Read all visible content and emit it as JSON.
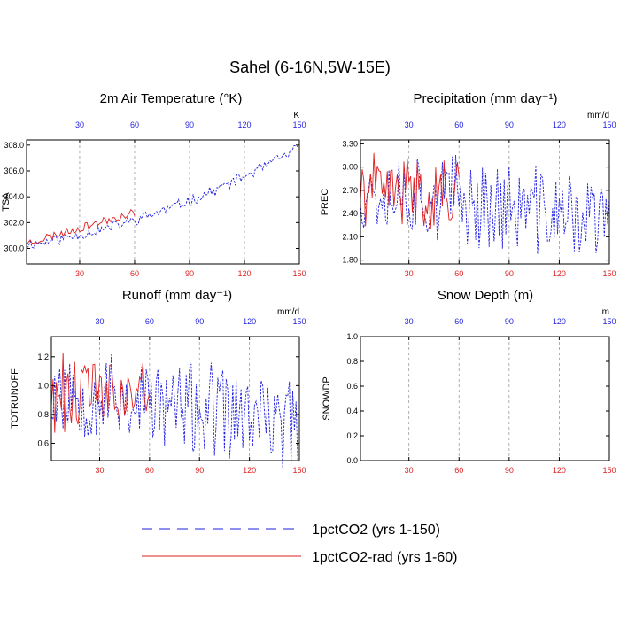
{
  "figure": {
    "title": "Sahel (6-16N,5W-15E)",
    "colors": {
      "series1": "#1f1fe0",
      "series2": "#e01f1f",
      "grid": "#9a9a9a"
    }
  },
  "legend": [
    {
      "label": "1pctCO2 (yrs 1-150)",
      "color": "#1f1fe0",
      "style": "dashed"
    },
    {
      "label": "1pctCO2-rad (yrs 1-60)",
      "color": "#e01f1f",
      "style": "solid"
    }
  ],
  "chart_data": [
    {
      "type": "line",
      "title": "2m Air Temperature (°K)",
      "ylabel": "TSA",
      "unit": "K",
      "xlim": [
        1,
        150
      ],
      "ylim": [
        298.8,
        308.4
      ],
      "yticks": [
        "300.0",
        "302.0",
        "304.0",
        "306.0",
        "308.0"
      ],
      "yticks_values": [
        300,
        302,
        304,
        306,
        308
      ],
      "xticks_bottom": [
        "30",
        "60",
        "90",
        "120",
        "150"
      ],
      "xticks_top": [
        "30",
        "60",
        "90",
        "120",
        "150"
      ],
      "grid_x": [
        30,
        60,
        90,
        120
      ],
      "series": [
        {
          "name": "1pctCO2 (yrs 1-150)",
          "gen": {
            "start": 300.3,
            "end": 307.8,
            "amp": 0.55,
            "seed": 11,
            "curve": 0.6
          },
          "values": []
        },
        {
          "name": "1pctCO2-rad (yrs 1-60)",
          "gen": {
            "start": 300.4,
            "end": 302.8,
            "amp": 0.45,
            "seed": 23,
            "curve": 0
          },
          "values": []
        }
      ]
    },
    {
      "type": "line",
      "title": "Precipitation (mm day⁻¹)",
      "ylabel": "PREC",
      "unit": "mm/d",
      "xlim": [
        1,
        150
      ],
      "ylim": [
        1.75,
        3.35
      ],
      "yticks": [
        "1.80",
        "2.10",
        "2.40",
        "2.70",
        "3.00",
        "3.30"
      ],
      "yticks_values": [
        1.8,
        2.1,
        2.4,
        2.7,
        3.0,
        3.3
      ],
      "xticks_bottom": [
        "30",
        "60",
        "90",
        "120",
        "150"
      ],
      "xticks_top": [
        "30",
        "60",
        "90",
        "120",
        "150"
      ],
      "grid_x": [
        30,
        60,
        90,
        120
      ],
      "series": [
        {
          "name": "1pctCO2 (yrs 1-150)",
          "gen": {
            "start": 2.75,
            "end": 2.3,
            "amp": 0.75,
            "seed": 37,
            "curve": 0
          },
          "values": []
        },
        {
          "name": "1pctCO2-rad (yrs 1-60)",
          "gen": {
            "start": 2.7,
            "end": 2.65,
            "amp": 0.6,
            "seed": 41,
            "curve": 0
          },
          "values": []
        }
      ]
    },
    {
      "type": "line",
      "title": "Runoff (mm day⁻¹)",
      "ylabel": "TOTRUNOFF",
      "unit": "mm/d",
      "xlim": [
        1,
        150
      ],
      "ylim": [
        0.48,
        1.34
      ],
      "yticks": [
        "0.6",
        "0.8",
        "1.0",
        "1.2"
      ],
      "yticks_values": [
        0.6,
        0.8,
        1.0,
        1.2
      ],
      "xticks_bottom": [
        "30",
        "60",
        "90",
        "120",
        "150"
      ],
      "xticks_top": [
        "30",
        "60",
        "90",
        "120",
        "150"
      ],
      "grid_x": [
        30,
        60,
        90,
        120
      ],
      "series": [
        {
          "name": "1pctCO2 (yrs 1-150)",
          "gen": {
            "start": 0.98,
            "end": 0.72,
            "amp": 0.42,
            "seed": 53,
            "curve": 0
          },
          "values": []
        },
        {
          "name": "1pctCO2-rad (yrs 1-60)",
          "gen": {
            "start": 0.95,
            "end": 0.92,
            "amp": 0.38,
            "seed": 61,
            "curve": 0
          },
          "values": []
        }
      ]
    },
    {
      "type": "line",
      "title": "Snow Depth (m)",
      "ylabel": "SNOWDP",
      "unit": "m",
      "xlim": [
        1,
        150
      ],
      "ylim": [
        0,
        1.0
      ],
      "yticks": [
        "0.0",
        "0.2",
        "0.4",
        "0.6",
        "0.8",
        "1.0"
      ],
      "yticks_values": [
        0,
        0.2,
        0.4,
        0.6,
        0.8,
        1.0
      ],
      "xticks_bottom": [
        "30",
        "60",
        "90",
        "120",
        "150"
      ],
      "xticks_top": [
        "30",
        "60",
        "90",
        "120",
        "150"
      ],
      "grid_x": [
        30,
        60,
        90,
        120
      ],
      "series": [
        {
          "name": "1pctCO2 (yrs 1-150)",
          "gen": {
            "start": 0,
            "end": 0,
            "amp": 0,
            "seed": 71,
            "curve": 0
          },
          "values": []
        },
        {
          "name": "1pctCO2-rad (yrs 1-60)",
          "gen": {
            "start": 0,
            "end": 0,
            "amp": 0,
            "seed": 79,
            "curve": 0
          },
          "values": []
        }
      ]
    }
  ]
}
